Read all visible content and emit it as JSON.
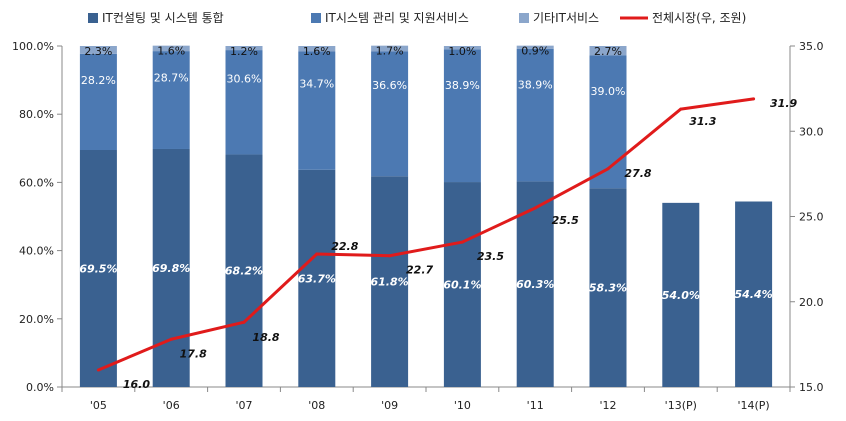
{
  "chart_data": {
    "type": "bar",
    "stacked": true,
    "combo": "bar+line",
    "categories": [
      "'05",
      "'06",
      "'07",
      "'08",
      "'09",
      "'10",
      "'11",
      "'12",
      "'13(P)",
      "'14(P)"
    ],
    "series": [
      {
        "name": "IT컨설팅 및 시스템 통합",
        "color": "#3a6190",
        "values": [
          69.5,
          69.8,
          68.2,
          63.7,
          61.8,
          60.1,
          60.3,
          58.3,
          54.0,
          54.4
        ],
        "labels": [
          "69.5%",
          "69.8%",
          "68.2%",
          "63.7%",
          "61.8%",
          "60.1%",
          "60.3%",
          "58.3%",
          "54.0%",
          "54.4%"
        ]
      },
      {
        "name": "IT시스템 관리 및 지원서비스",
        "color": "#4c79b2",
        "values": [
          28.2,
          28.7,
          30.6,
          34.7,
          36.6,
          38.9,
          38.9,
          39.0,
          null,
          null
        ],
        "labels": [
          "28.2%",
          "28.7%",
          "30.6%",
          "34.7%",
          "36.6%",
          "38.9%",
          "38.9%",
          "39.0%",
          "",
          ""
        ]
      },
      {
        "name": "기타IT서비스",
        "color": "#8ba6cb",
        "values": [
          2.3,
          1.6,
          1.2,
          1.6,
          1.7,
          1.0,
          0.9,
          2.7,
          null,
          null
        ],
        "labels": [
          "2.3%",
          "1.6%",
          "1.2%",
          "1.6%",
          "1.7%",
          "1.0%",
          "0.9%",
          "2.7%",
          "",
          ""
        ]
      }
    ],
    "line_series": {
      "name": "전체시장(우, 조원)",
      "color": "#e01b1b",
      "values": [
        16.0,
        17.8,
        18.8,
        22.8,
        22.7,
        23.5,
        25.5,
        27.8,
        31.3,
        31.9
      ],
      "labels": [
        "16.0",
        "17.8",
        "18.8",
        "22.8",
        "22.7",
        "23.5",
        "25.5",
        "27.8",
        "31.3",
        "31.9"
      ]
    },
    "y_left": {
      "ylim": [
        0,
        100
      ],
      "ticks": [
        0,
        20,
        40,
        60,
        80,
        100
      ],
      "tick_labels": [
        "0.0%",
        "20.0%",
        "40.0%",
        "60.0%",
        "80.0%",
        "100.0%"
      ]
    },
    "y_right": {
      "ylim": [
        15,
        35
      ],
      "ticks": [
        15,
        20,
        25,
        30,
        35
      ],
      "tick_labels": [
        "15.0",
        "20.0",
        "25.0",
        "30.0",
        "35.0"
      ]
    },
    "legend_position": "top",
    "grid": false
  }
}
